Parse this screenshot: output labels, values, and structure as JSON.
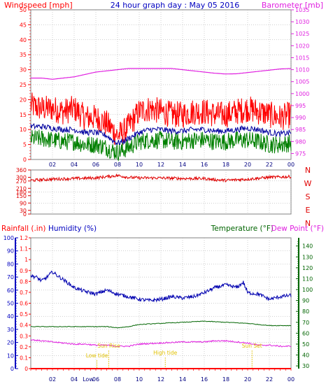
{
  "colors": {
    "frame": "#808080",
    "grid": "#a0a0a0",
    "wind": "#ff0000",
    "windAvg": "#0000a0",
    "windLow": "#008000",
    "baro": "#e020e0",
    "dir": "#e00000",
    "rain": "#ff0000",
    "humidity": "#0000b0",
    "temperature": "#006400",
    "dewpoint": "#e020e0",
    "humidAxis": "#0000c0",
    "tempAxis": "#006400",
    "dewAxis": "#e020e0",
    "sunLabel": "#e0c000"
  },
  "header": {
    "left": "Windspeed [mph]",
    "center": "24 hour graph day : May 05 2016",
    "right": "Barometer [mb]"
  },
  "chart_data": [
    {
      "type": "line",
      "name": "wind-baro-panel",
      "x_ticks": [
        "02",
        "04",
        "06",
        "08",
        "10",
        "12",
        "14",
        "16",
        "18",
        "20",
        "22",
        "00"
      ],
      "y_left_ticks": [
        "0",
        "5",
        "10",
        "15",
        "20",
        "25",
        "30",
        "35",
        "40",
        "45",
        "50"
      ],
      "y_left_range": [
        0,
        50
      ],
      "y_right_ticks": [
        "975",
        "980",
        "985",
        "990",
        "995",
        "1000",
        "1005",
        "1010",
        "1015",
        "1020",
        "1025",
        "1030",
        "1035"
      ],
      "y_right_range": [
        972.5,
        1035
      ],
      "series": [
        {
          "key": "gust",
          "hours": [
            0,
            1,
            2,
            3,
            4,
            5,
            6,
            7,
            7.5,
            8,
            8.5,
            9,
            10,
            11,
            12,
            13,
            14,
            15,
            16,
            17,
            18,
            19,
            20,
            21,
            22,
            23,
            24
          ],
          "values": [
            18,
            17,
            17,
            16,
            17,
            14,
            14,
            12,
            10,
            8,
            9,
            11,
            16,
            17,
            16,
            15,
            15,
            16,
            16,
            15,
            15,
            16,
            17,
            16,
            15,
            14,
            15
          ]
        },
        {
          "key": "average",
          "hours": [
            0,
            1,
            2,
            3,
            4,
            5,
            6,
            7,
            7.5,
            8,
            8.5,
            9,
            10,
            11,
            12,
            13,
            14,
            15,
            16,
            17,
            18,
            19,
            20,
            21,
            22,
            23,
            24
          ],
          "values": [
            11,
            11,
            10.5,
            10,
            10,
            9,
            9,
            8,
            6.5,
            5.5,
            6,
            7,
            9,
            10,
            10,
            9.5,
            9.5,
            10,
            10,
            9.5,
            9.5,
            10,
            10.5,
            10,
            9,
            8.5,
            9
          ]
        },
        {
          "key": "low",
          "hours": [
            0,
            1,
            2,
            3,
            4,
            5,
            6,
            7,
            7.5,
            8,
            8.5,
            9,
            10,
            11,
            12,
            13,
            14,
            15,
            16,
            17,
            18,
            19,
            20,
            21,
            22,
            23,
            24
          ],
          "values": [
            7,
            7,
            6.5,
            6,
            6,
            5,
            5,
            4,
            3,
            2.5,
            3,
            4,
            6,
            6.5,
            6.5,
            6,
            6,
            6.5,
            6.5,
            6,
            6,
            6.5,
            6.5,
            6,
            5,
            5,
            5.5
          ]
        },
        {
          "key": "barometer",
          "hours": [
            0,
            1,
            2,
            3,
            4,
            5,
            6,
            7,
            8,
            9,
            10,
            11,
            12,
            13,
            14,
            15,
            16,
            17,
            18,
            19,
            20,
            21,
            22,
            23,
            24
          ],
          "values": [
            1006.5,
            1006.5,
            1006,
            1006.5,
            1007,
            1008,
            1009,
            1009.5,
            1010,
            1010.5,
            1010.5,
            1010.5,
            1010.5,
            1010.5,
            1010,
            1009.5,
            1009,
            1008.5,
            1008.2,
            1008.3,
            1008.8,
            1009.3,
            1009.8,
            1010.3,
            1010.5
          ]
        }
      ]
    },
    {
      "type": "line",
      "name": "direction-panel",
      "x_ticks": [
        "02",
        "04",
        "06",
        "08",
        "10",
        "12",
        "14",
        "16",
        "18",
        "20",
        "22",
        "00"
      ],
      "y_left_ticks": [
        "0",
        "30",
        "90",
        "150",
        "180",
        "210",
        "270",
        "300",
        "360"
      ],
      "y_left_range": [
        0,
        360
      ],
      "y_right_ticks": [
        "N",
        "W",
        "S",
        "E",
        "N"
      ],
      "series": [
        {
          "key": "direction",
          "hours": [
            0,
            2,
            4,
            6,
            7,
            8,
            9,
            10,
            12,
            14,
            16,
            17,
            18,
            20,
            22,
            24
          ],
          "values": [
            275,
            285,
            290,
            295,
            305,
            315,
            300,
            295,
            295,
            290,
            290,
            280,
            275,
            285,
            300,
            305
          ]
        }
      ]
    },
    {
      "type": "line",
      "name": "rain-humidity-temp-panel",
      "x_ticks": [
        "02",
        "04",
        "06",
        "08",
        "10",
        "12",
        "14",
        "16",
        "18",
        "20",
        "22",
        "00"
      ],
      "labels": {
        "rain": "Rainfall (.in)",
        "humidity": "Humidity (%)",
        "temperature": "Temperature (°F)",
        "dewpoint": "Dew Point (°F)"
      },
      "y_rain_ticks": [
        "0",
        "0.1",
        "0.2",
        "0.3",
        "0.4",
        "0.5",
        "0.6",
        "0.7",
        "0.8",
        "0.9",
        "1",
        "1.1",
        "1.2"
      ],
      "y_humid_ticks": [
        "0",
        "10",
        "20",
        "30",
        "40",
        "50",
        "60",
        "70",
        "80",
        "90",
        "100"
      ],
      "y_humid_range": [
        0,
        100
      ],
      "y_temp_ticks": [
        "30",
        "40",
        "50",
        "60",
        "70",
        "80",
        "90",
        "100",
        "110",
        "120",
        "130",
        "140"
      ],
      "y_temp_range": [
        27.5,
        147.5
      ],
      "events": [
        {
          "label": "Low tide",
          "hour": 6.1
        },
        {
          "label": "Sun Rise",
          "hour": 7.2
        },
        {
          "label": "High tide",
          "hour": 12.4
        },
        {
          "label": "Sun Set",
          "hour": 20.4
        }
      ],
      "xaxis_extra": "Low",
      "series": [
        {
          "key": "humidity",
          "hours": [
            0,
            0.5,
            1,
            1.5,
            2,
            2.3,
            3,
            4,
            5,
            6,
            7,
            8,
            9,
            10,
            11,
            12,
            13,
            14,
            15,
            16,
            17,
            18,
            19,
            19.6,
            20,
            21,
            22,
            23,
            24
          ],
          "values": [
            71,
            70,
            67,
            70,
            74,
            72,
            68,
            62,
            59,
            57,
            60,
            57,
            55,
            53,
            52,
            53,
            55,
            54,
            55,
            58,
            62,
            64,
            62,
            66,
            58,
            57,
            53,
            55,
            56
          ]
        },
        {
          "key": "temperature",
          "hours": [
            0,
            2,
            4,
            6,
            7,
            8,
            9,
            10,
            12,
            14,
            16,
            18,
            20,
            22,
            24
          ],
          "values": [
            66,
            66,
            66,
            66,
            66,
            65,
            66,
            68,
            69,
            70,
            71,
            70,
            69,
            67,
            67
          ]
        },
        {
          "key": "dewpoint",
          "hours": [
            0,
            1,
            2,
            3,
            4,
            5,
            6,
            7,
            8,
            9,
            10,
            12,
            14,
            16,
            17,
            18,
            19,
            20,
            21,
            22,
            23,
            24
          ],
          "values": [
            54,
            53,
            52,
            51,
            50,
            50,
            49,
            49,
            48,
            48,
            50,
            51,
            52,
            52,
            53,
            53,
            52,
            51,
            49,
            49,
            48,
            48
          ]
        }
      ]
    }
  ]
}
